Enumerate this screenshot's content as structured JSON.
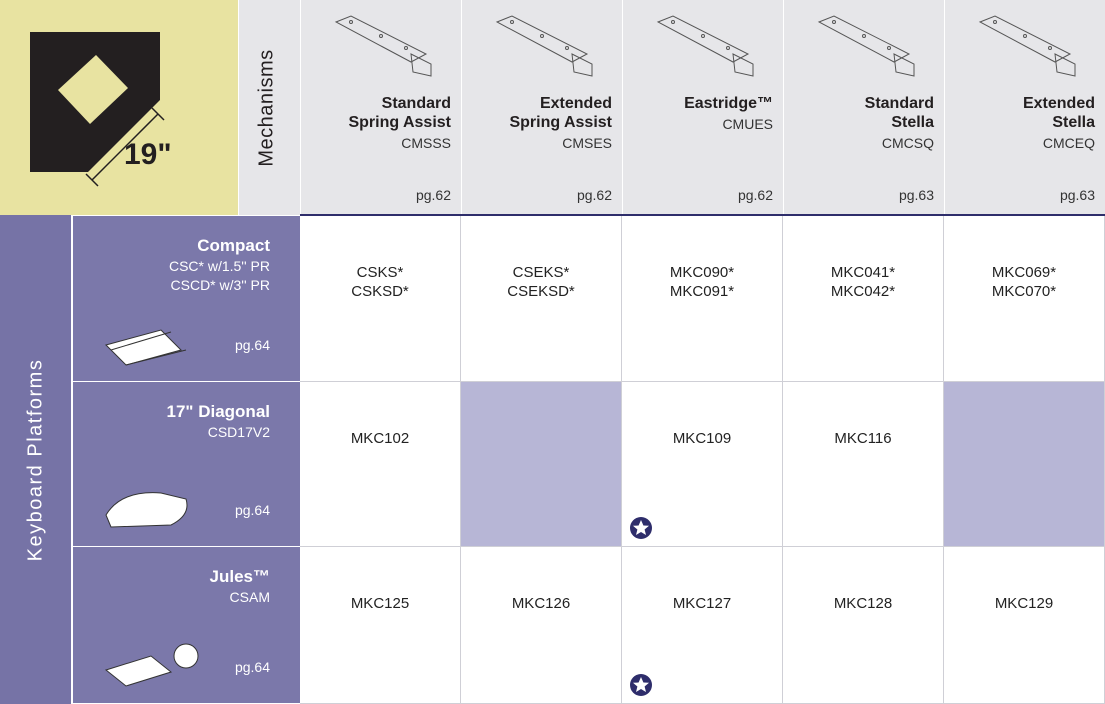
{
  "header": {
    "size": "19\"",
    "mechanisms_label": "Mechanisms",
    "columns": [
      {
        "name": [
          "Standard",
          "Spring Assist"
        ],
        "code": "CMSSS",
        "page": "pg.62"
      },
      {
        "name": [
          "Extended",
          "Spring Assist"
        ],
        "code": "CMSES",
        "page": "pg.62"
      },
      {
        "name": [
          "Eastridge™"
        ],
        "code": "CMUES",
        "page": "pg.62"
      },
      {
        "name": [
          "Standard",
          "Stella"
        ],
        "code": "CMCSQ",
        "page": "pg.63"
      },
      {
        "name": [
          "Extended",
          "Stella"
        ],
        "code": "CMCEQ",
        "page": "pg.63"
      }
    ]
  },
  "row_group_label": "Keyboard Platforms",
  "rows": [
    {
      "name": "Compact",
      "details": [
        "CSC* w/1.5'' PR",
        "CSCD* w/3'' PR"
      ],
      "page": "pg.64",
      "cells": [
        [
          "CSKS*",
          "CSKSD*"
        ],
        [
          "CSEKS*",
          "CSEKSD*"
        ],
        [
          "MKC090*",
          "MKC091*"
        ],
        [
          "MKC041*",
          "MKC042*"
        ],
        [
          "MKC069*",
          "MKC070*"
        ]
      ]
    },
    {
      "name": "17\" Diagonal",
      "details": [
        "CSD17V2"
      ],
      "page": "pg.64",
      "cells": [
        [
          "MKC102"
        ],
        null,
        [
          "MKC109"
        ],
        [
          "MKC116"
        ],
        null
      ]
    },
    {
      "name": "Jules™",
      "details": [
        "CSAM"
      ],
      "page": "pg.64",
      "cells": [
        [
          "MKC125"
        ],
        [
          "MKC126"
        ],
        [
          "MKC127"
        ],
        [
          "MKC128"
        ],
        [
          "MKC129"
        ]
      ]
    }
  ]
}
